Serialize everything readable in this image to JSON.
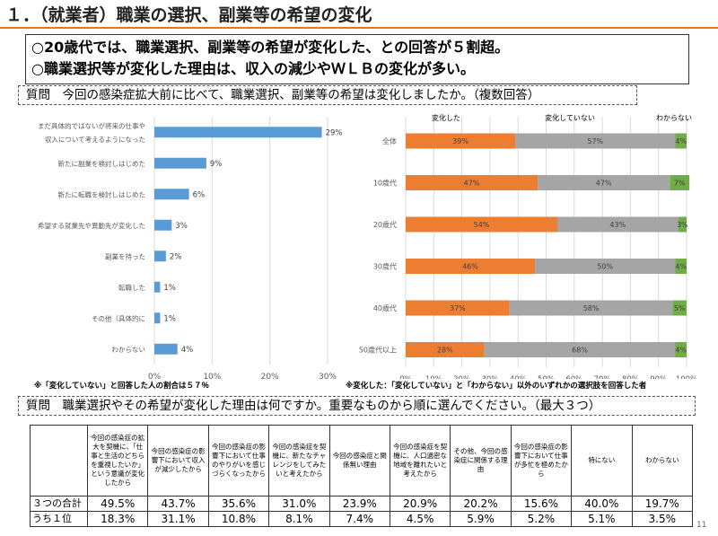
{
  "title": "１．（就業者）職業の選択、副業等の希望の変化",
  "summary": [
    "○20歳代では、職業選択、副業等の希望が変化した、との回答が５割超。",
    "○職業選択等が変化した理由は、収入の減少やＷＬＢの変化が多い。"
  ],
  "question1": "質問　今回の感染症拡大前に比べて、職業選択、副業等の希望は変化しましたか。（複数回答）",
  "question2": "質問　職業選択やその希望が変化した理由は何ですか。重要なものから順に選んでください。（最大３つ）",
  "note_left": "※「変化していない」と回答した人の割合は５７％",
  "note_right": "※変化した：「変化していない」と「わからない」以外のいずれかの選択肢を回答した者",
  "page_number": "11",
  "colors": {
    "accent": "#e8761d",
    "bar_blue": "#5b9bd5",
    "changed": "#ed7d31",
    "unchanged": "#a5a5a5",
    "unknown": "#70ad47"
  },
  "chart_data": [
    {
      "type": "bar",
      "orientation": "horizontal",
      "categories": [
        [
          "まだ具体的ではないが将来の仕事や",
          "収入について考えるようになった"
        ],
        [
          "新たに副業を検討しはじめた"
        ],
        [
          "新たに転職を検討しはじめた"
        ],
        [
          "希望する就業先や異動先が変化した"
        ],
        [
          "副業を持った"
        ],
        [
          "転職した"
        ],
        [
          "その他（具体的に"
        ],
        [
          "わからない"
        ]
      ],
      "values": [
        29,
        9,
        6,
        3,
        2,
        1,
        1,
        4
      ],
      "value_labels": [
        "29%",
        "9%",
        "6%",
        "3%",
        "2%",
        "1%",
        "1%",
        "4%"
      ],
      "xlim": [
        0,
        30
      ],
      "ticks": [
        "0%",
        "10%",
        "20%",
        "30%"
      ],
      "grid": true
    },
    {
      "type": "bar",
      "orientation": "horizontal",
      "stacked": true,
      "categories": [
        "全体",
        "10歳代",
        "20歳代",
        "30歳代",
        "40歳代",
        "50歳代以上"
      ],
      "series": [
        {
          "name": "変化した",
          "values": [
            39,
            47,
            54,
            46,
            37,
            28
          ],
          "labels": [
            "39%",
            "47%",
            "54%",
            "46%",
            "37%",
            "28%"
          ]
        },
        {
          "name": "変化していない",
          "values": [
            57,
            47,
            43,
            50,
            58,
            68
          ],
          "labels": [
            "57%",
            "47%",
            "43%",
            "50%",
            "58%",
            "68%"
          ]
        },
        {
          "name": "わからない",
          "values": [
            4,
            7,
            3,
            4,
            5,
            4
          ],
          "labels": [
            "4%",
            "7%",
            "3%",
            "4%",
            "5%",
            "4%"
          ]
        }
      ],
      "xlim": [
        0,
        100
      ],
      "ticks": [
        "0%",
        "10%",
        "20%",
        "30%",
        "40%",
        "50%",
        "60%",
        "70%",
        "80%",
        "90%",
        "100%"
      ],
      "grid": true
    }
  ],
  "reasons_table": {
    "headers": [
      "今回の感染症の拡大を契機に、「仕事と生活のどちらを重視したいか」という意識が変化したから",
      "今回の感染症の影響下において収入が減少したから",
      "今回の感染症の影響下において仕事のやりがいを感じづらくなったから",
      "今回の感染症を契機に、新たなチャレンジをしてみたいと考えたから",
      "今回の感染症と関係無い理由",
      "今回の感染症を契機に、人口過密な地域を離れたいと考えたから",
      "その他、今回の感染症に関係する理由",
      "今回の感染症の影響下において仕事が多忙を極めたから",
      "特にない",
      "わからない"
    ],
    "rows": [
      {
        "label": "３つの合計",
        "values": [
          "49.5%",
          "43.7%",
          "35.6%",
          "31.0%",
          "23.9%",
          "20.9%",
          "20.2%",
          "15.6%",
          "40.0%",
          "19.7%"
        ]
      },
      {
        "label": "うち１位",
        "values": [
          "18.3%",
          "31.1%",
          "10.8%",
          "8.1%",
          "7.4%",
          "4.5%",
          "5.9%",
          "5.2%",
          "5.1%",
          "3.5%"
        ]
      }
    ]
  }
}
